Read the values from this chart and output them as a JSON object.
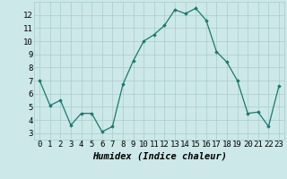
{
  "x": [
    0,
    1,
    2,
    3,
    4,
    5,
    6,
    7,
    8,
    9,
    10,
    11,
    12,
    13,
    14,
    15,
    16,
    17,
    18,
    19,
    20,
    21,
    22,
    23
  ],
  "y": [
    7.0,
    5.1,
    5.5,
    3.6,
    4.5,
    4.5,
    3.1,
    3.5,
    6.7,
    8.5,
    10.0,
    10.5,
    11.2,
    12.4,
    12.1,
    12.5,
    11.6,
    9.2,
    8.4,
    7.0,
    4.5,
    4.6,
    3.5,
    6.6
  ],
  "xlabel": "Humidex (Indice chaleur)",
  "xlim": [
    -0.5,
    23.5
  ],
  "ylim": [
    2.5,
    13.0
  ],
  "yticks": [
    3,
    4,
    5,
    6,
    7,
    8,
    9,
    10,
    11,
    12
  ],
  "xticks": [
    0,
    1,
    2,
    3,
    4,
    5,
    6,
    7,
    8,
    9,
    10,
    11,
    12,
    13,
    14,
    15,
    16,
    17,
    18,
    19,
    20,
    21,
    22,
    23
  ],
  "line_color": "#1a7a6e",
  "marker": "D",
  "marker_size": 1.8,
  "bg_color": "#cce8e8",
  "grid_color": "#aacccc",
  "xlabel_fontsize": 7.5,
  "tick_fontsize": 6.5,
  "linewidth": 0.9
}
